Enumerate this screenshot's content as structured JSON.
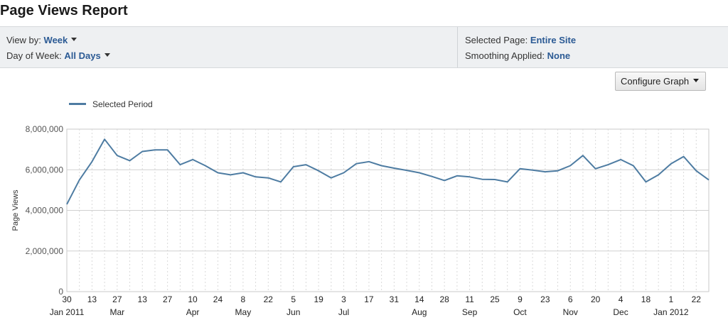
{
  "header": {
    "title": "Page Views Report"
  },
  "filters": {
    "view_by_label": "View by:",
    "view_by_value": "Week",
    "day_of_week_label": "Day of Week:",
    "day_of_week_value": "All Days",
    "selected_page_label": "Selected Page:",
    "selected_page_value": "Entire Site",
    "smoothing_label": "Smoothing Applied:",
    "smoothing_value": "None"
  },
  "toolbar": {
    "configure_label": "Configure Graph"
  },
  "colors": {
    "series_line": "#4e7ca2",
    "accent_text": "#2b5a94"
  },
  "chart_data": {
    "type": "line",
    "title": "",
    "xlabel": "",
    "ylabel": "Page Views",
    "ylim": [
      0,
      8000000
    ],
    "yticks": [
      0,
      2000000,
      4000000,
      6000000,
      8000000
    ],
    "ytick_labels": [
      "0",
      "2,000,000",
      "4,000,000",
      "6,000,000",
      "8,000,000"
    ],
    "grid": true,
    "legend": "top-left",
    "x_ticks": [
      {
        "day": "30",
        "month": "Jan 2011"
      },
      {
        "day": "13",
        "month": ""
      },
      {
        "day": "27",
        "month": "Mar"
      },
      {
        "day": "13",
        "month": ""
      },
      {
        "day": "27",
        "month": ""
      },
      {
        "day": "10",
        "month": "Apr"
      },
      {
        "day": "24",
        "month": ""
      },
      {
        "day": "8",
        "month": "May"
      },
      {
        "day": "22",
        "month": ""
      },
      {
        "day": "5",
        "month": "Jun"
      },
      {
        "day": "19",
        "month": ""
      },
      {
        "day": "3",
        "month": "Jul"
      },
      {
        "day": "17",
        "month": ""
      },
      {
        "day": "31",
        "month": ""
      },
      {
        "day": "14",
        "month": "Aug"
      },
      {
        "day": "28",
        "month": ""
      },
      {
        "day": "11",
        "month": "Sep"
      },
      {
        "day": "25",
        "month": ""
      },
      {
        "day": "9",
        "month": "Oct"
      },
      {
        "day": "23",
        "month": ""
      },
      {
        "day": "6",
        "month": "Nov"
      },
      {
        "day": "20",
        "month": ""
      },
      {
        "day": "4",
        "month": "Dec"
      },
      {
        "day": "18",
        "month": ""
      },
      {
        "day": "1",
        "month": "Jan 2012"
      },
      {
        "day": "22",
        "month": ""
      }
    ],
    "series": [
      {
        "name": "Selected Period",
        "x": [
          "2011-01-30",
          "2011-02-06",
          "2011-02-13",
          "2011-02-20",
          "2011-02-27",
          "2011-03-06",
          "2011-03-13",
          "2011-03-20",
          "2011-03-27",
          "2011-04-03",
          "2011-04-10",
          "2011-04-17",
          "2011-04-24",
          "2011-05-01",
          "2011-05-08",
          "2011-05-15",
          "2011-05-22",
          "2011-05-29",
          "2011-06-05",
          "2011-06-12",
          "2011-06-19",
          "2011-06-26",
          "2011-07-03",
          "2011-07-10",
          "2011-07-17",
          "2011-07-24",
          "2011-07-31",
          "2011-08-07",
          "2011-08-14",
          "2011-08-21",
          "2011-08-28",
          "2011-09-04",
          "2011-09-11",
          "2011-09-18",
          "2011-09-25",
          "2011-10-02",
          "2011-10-09",
          "2011-10-16",
          "2011-10-23",
          "2011-10-30",
          "2011-11-06",
          "2011-11-13",
          "2011-11-20",
          "2011-11-27",
          "2011-12-04",
          "2011-12-11",
          "2011-12-18",
          "2011-12-25",
          "2012-01-01",
          "2012-01-08",
          "2012-01-15",
          "2012-01-22"
        ],
        "values": [
          4300000,
          5500000,
          6400000,
          7500000,
          6700000,
          6450000,
          6900000,
          6980000,
          6980000,
          6250000,
          6500000,
          6200000,
          5850000,
          5750000,
          5850000,
          5650000,
          5600000,
          5400000,
          6150000,
          6250000,
          5950000,
          5600000,
          5850000,
          6300000,
          6400000,
          6200000,
          6080000,
          5970000,
          5850000,
          5670000,
          5470000,
          5700000,
          5650000,
          5530000,
          5520000,
          5400000,
          6050000,
          5980000,
          5900000,
          5950000,
          6200000,
          6700000,
          6050000,
          6250000,
          6500000,
          6200000,
          5400000,
          5750000,
          6300000,
          6650000,
          5950000,
          5500000
        ]
      }
    ]
  }
}
